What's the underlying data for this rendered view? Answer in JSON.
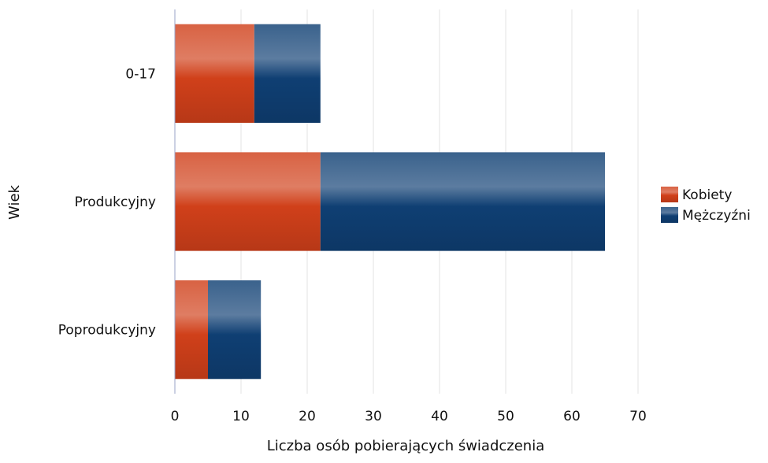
{
  "chart_data": {
    "type": "bar",
    "orientation": "horizontal",
    "stacked": true,
    "categories": [
      "0-17",
      "Produkcyjny",
      "Poprodukcyjny"
    ],
    "series": [
      {
        "name": "Kobiety",
        "values": [
          12,
          22,
          5
        ],
        "color": "#d0401a"
      },
      {
        "name": "Mężczyźni",
        "values": [
          10,
          43,
          8
        ],
        "color": "#0f3f73"
      }
    ],
    "xlabel": "Liczba osób pobierających świadczenia",
    "ylabel": "Wiek",
    "xlim": [
      0,
      70
    ],
    "xticks": [
      0,
      10,
      20,
      30,
      40,
      50,
      60,
      70
    ],
    "grid": true,
    "legend_position": "right"
  }
}
